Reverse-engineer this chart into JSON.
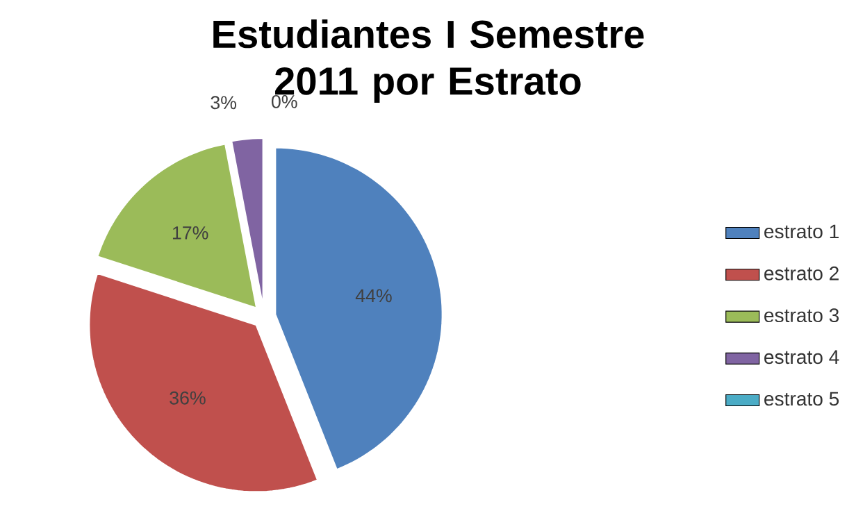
{
  "chart_data": {
    "type": "pie",
    "title": "Estudiantes I Semestre 2011 por Estrato",
    "categories": [
      "estrato 1",
      "estrato 2",
      "estrato 3",
      "estrato 4",
      "estrato 5"
    ],
    "values": [
      44,
      36,
      17,
      3,
      0
    ],
    "value_labels": [
      "44%",
      "36%",
      "17%",
      "3%",
      "0%"
    ],
    "colors": [
      "#4f81bd",
      "#c0504d",
      "#9bbb59",
      "#8064a2",
      "#4bacc6"
    ],
    "legend": "right"
  }
}
